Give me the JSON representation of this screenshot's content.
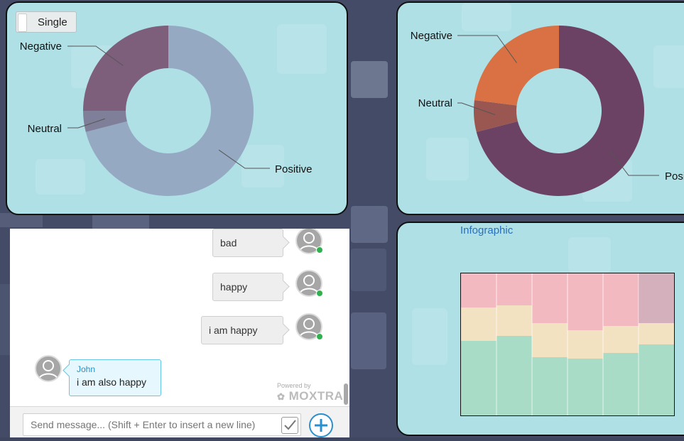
{
  "panel1": {
    "toggle_label": "Single",
    "chart_data": {
      "type": "pie",
      "variant": "donut",
      "title": "",
      "categories": [
        "Positive",
        "Neutral",
        "Negative"
      ],
      "values": [
        71,
        4,
        25
      ],
      "colors": [
        "#95a9c3",
        "#7f7f99",
        "#7d5f7c"
      ]
    }
  },
  "panel2": {
    "chart_data": {
      "type": "pie",
      "variant": "donut",
      "title": "",
      "categories": [
        "Positive",
        "Neutral",
        "Negative"
      ],
      "values": [
        71,
        6,
        23
      ],
      "colors": [
        "#6b4263",
        "#9a5752",
        "#d97145"
      ],
      "clipped_label": "Posi"
    }
  },
  "panel3": {
    "title": "Infographic",
    "stripe_colors": [
      "#f3b9c0",
      "#f2e2c2",
      "#a8dcc7"
    ]
  },
  "chat": {
    "messages": [
      {
        "direction": "out",
        "text": "bad"
      },
      {
        "direction": "out",
        "text": "happy"
      },
      {
        "direction": "out",
        "text": "i am happy"
      },
      {
        "direction": "in",
        "sender": "John",
        "text": "i am also happy"
      }
    ],
    "powered_by": "Powered by",
    "brand": "MOXTRA",
    "composer_placeholder": "Send message... (Shift + Enter to insert a new line)"
  }
}
